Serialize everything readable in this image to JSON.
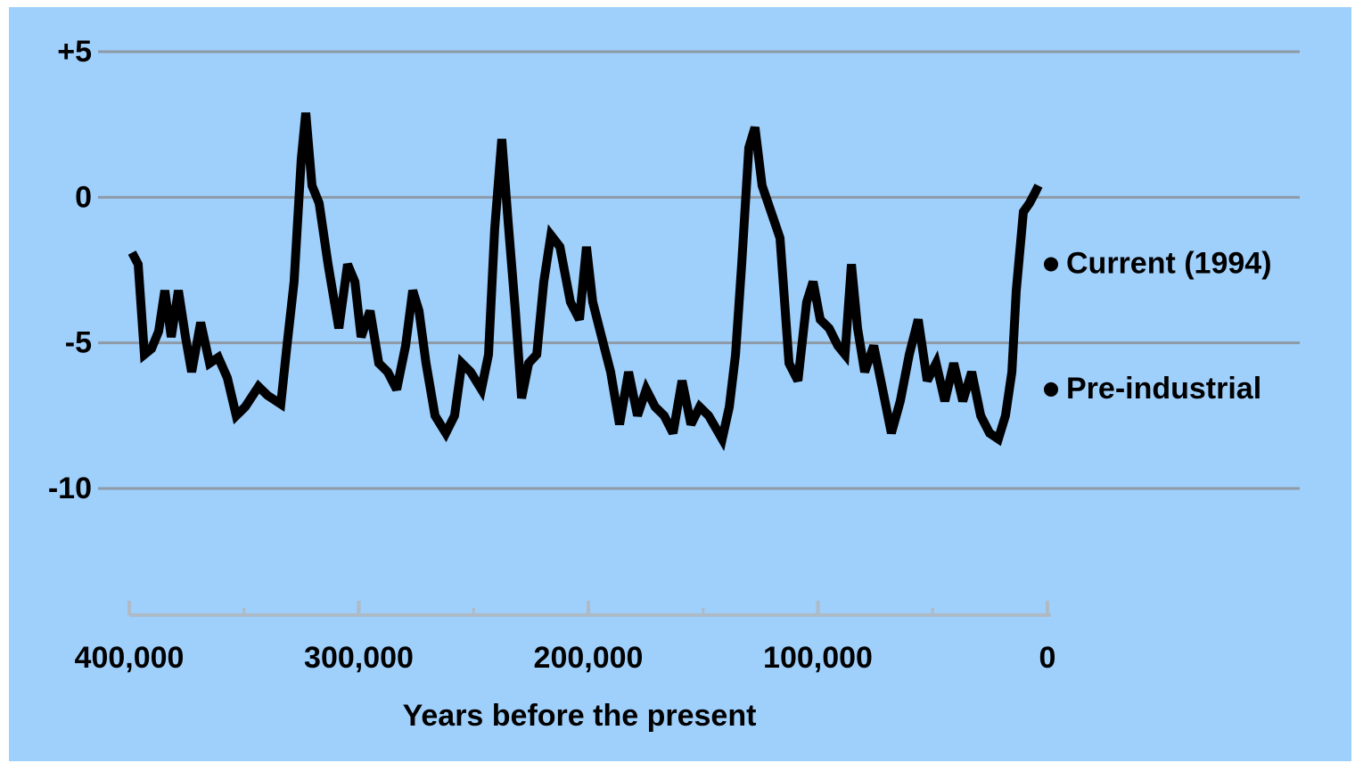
{
  "chart_data": {
    "type": "line",
    "x_label": "Years before the present",
    "color": "#000000",
    "x": [
      398800,
      396100,
      393400,
      390300,
      387200,
      384500,
      381700,
      378600,
      375500,
      372800,
      368900,
      365000,
      361200,
      357300,
      353400,
      349500,
      343700,
      339800,
      334000,
      331300,
      328200,
      325100,
      323100,
      320400,
      317300,
      313400,
      308700,
      304900,
      301700,
      299000,
      295100,
      291300,
      287400,
      283500,
      279600,
      276500,
      273800,
      270700,
      266800,
      262100,
      258300,
      255100,
      251300,
      246600,
      243500,
      240800,
      237700,
      235000,
      231800,
      229100,
      226000,
      222500,
      219400,
      216300,
      212400,
      207800,
      203900,
      200800,
      198100,
      194200,
      190300,
      186400,
      182500,
      178600,
      174800,
      170900,
      167000,
      163100,
      159200,
      155300,
      151500,
      147600,
      141700,
      138600,
      135900,
      133200,
      130100,
      127400,
      124300,
      120400,
      116500,
      112600,
      108700,
      104900,
      102100,
      99000,
      95100,
      91300,
      88200,
      85400,
      82700,
      79600,
      75700,
      71800,
      68000,
      64100,
      60200,
      56300,
      52400,
      48500,
      44700,
      40800,
      36900,
      33000,
      29100,
      25200,
      21400,
      18300,
      15500,
      13600,
      10500,
      7800,
      5800,
      3900
    ],
    "values": [
      -1.9,
      -2.3,
      -5.4,
      -5.2,
      -4.6,
      -3.2,
      -4.8,
      -3.2,
      -4.8,
      -6.0,
      -4.3,
      -5.7,
      -5.5,
      -6.2,
      -7.5,
      -7.2,
      -6.5,
      -6.8,
      -7.1,
      -5.1,
      -2.9,
      1.3,
      2.9,
      0.4,
      -0.2,
      -2.3,
      -4.5,
      -2.3,
      -2.9,
      -4.8,
      -3.9,
      -5.7,
      -6.0,
      -6.6,
      -5.1,
      -3.2,
      -3.9,
      -5.7,
      -7.5,
      -8.1,
      -7.5,
      -5.7,
      -6.0,
      -6.6,
      -5.4,
      -1.1,
      2.0,
      -0.8,
      -3.9,
      -6.9,
      -5.7,
      -5.4,
      -2.9,
      -1.3,
      -1.7,
      -3.6,
      -4.2,
      -1.7,
      -3.6,
      -4.8,
      -6.0,
      -7.8,
      -6.0,
      -7.5,
      -6.6,
      -7.2,
      -7.5,
      -8.1,
      -6.3,
      -7.8,
      -7.2,
      -7.5,
      -8.3,
      -7.2,
      -5.4,
      -2.3,
      1.7,
      2.4,
      0.4,
      -0.5,
      -1.4,
      -5.7,
      -6.3,
      -3.6,
      -2.9,
      -4.2,
      -4.5,
      -5.1,
      -5.4,
      -2.3,
      -4.5,
      -6.0,
      -5.1,
      -6.6,
      -8.1,
      -7.0,
      -5.4,
      -4.2,
      -6.3,
      -5.7,
      -7.0,
      -5.7,
      -7.0,
      -6.0,
      -7.5,
      -8.1,
      -8.3,
      -7.5,
      -6.0,
      -3.2,
      -0.5,
      -0.2,
      0.1,
      0.4
    ],
    "xlim": [
      400000,
      0
    ],
    "xticks": [
      {
        "value": 400000,
        "label": "400,000"
      },
      {
        "value": 300000,
        "label": "300,000"
      },
      {
        "value": 200000,
        "label": "200,000"
      },
      {
        "value": 100000,
        "label": "100,000"
      },
      0
    ],
    "xminorticks": [
      350000,
      250000,
      150000,
      50000
    ],
    "ylim": [
      -10,
      5
    ],
    "yticks": [
      {
        "value": 5,
        "label": "+5"
      },
      0,
      -5,
      -10
    ],
    "grid": true,
    "annotations": [
      {
        "text": "Current (1994)",
        "y": -2.3
      },
      {
        "text": "Pre-industrial",
        "y": -6.6
      }
    ]
  }
}
